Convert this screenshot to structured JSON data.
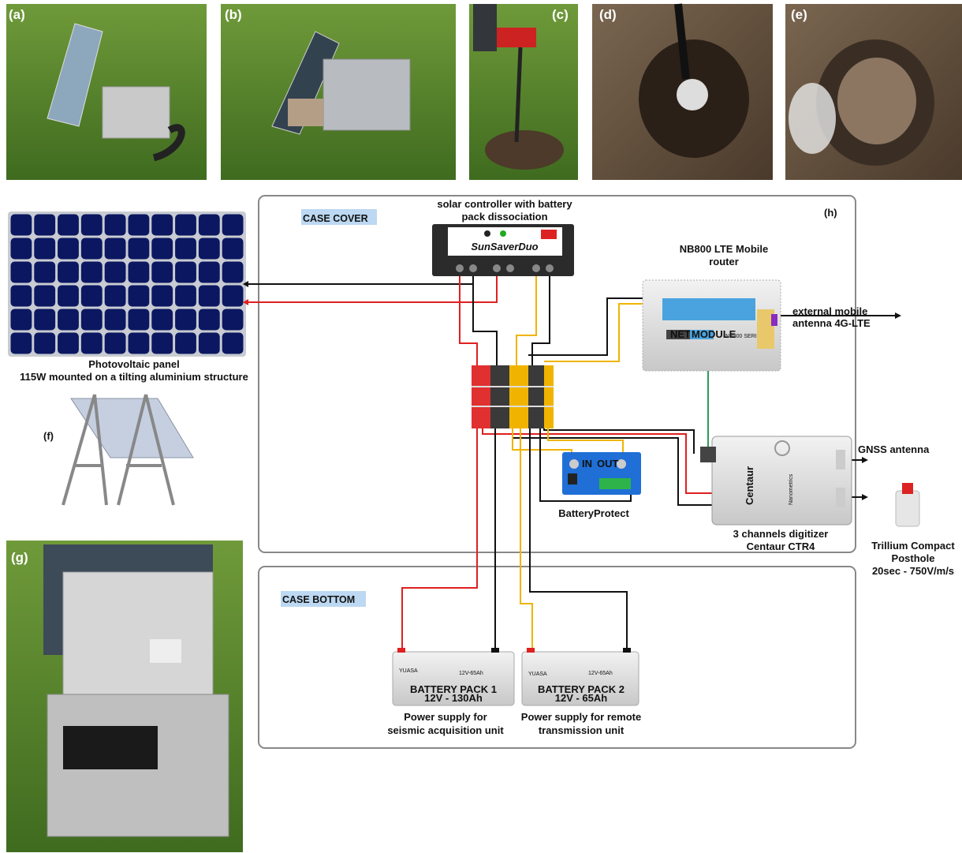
{
  "photos": [
    {
      "label": "(a)"
    },
    {
      "label": "(b)"
    },
    {
      "label": "(c)"
    },
    {
      "label": "(d)"
    },
    {
      "label": "(e)"
    }
  ],
  "panel_f": {
    "label": "(f)"
  },
  "panel_g": {
    "label": "(g)"
  },
  "panel_h": {
    "label": "(h)"
  },
  "sections": {
    "cover": "CASE COVER",
    "bottom": "CASE BOTTOM"
  },
  "solar_controller": {
    "lines": [
      "solar controller with battery",
      "pack dissociation"
    ],
    "brand": "SunSaverDuo"
  },
  "photovoltaic_panel": {
    "lines": [
      "Photovoltaic panel",
      "115W mounted on a tilting aluminium structure"
    ]
  },
  "router": {
    "lines": [
      "NB800 LTE Mobile",
      "router"
    ],
    "brand": [
      "NET",
      "MODULE"
    ],
    "series": "NB800 SERIES"
  },
  "mobile_antenna": {
    "lines": [
      "external mobile",
      "antenna 4G-LTE"
    ]
  },
  "battery_protect": {
    "label": "BatteryProtect",
    "in": "IN",
    "out": "OUT"
  },
  "gnss": {
    "label": "GNSS antenna"
  },
  "digitizer": {
    "lines": [
      "3 channels digitizer",
      "Centaur CTR4"
    ],
    "brand": "Centaur",
    "maker": "Nanometrics"
  },
  "seismometer": {
    "lines": [
      "Trillium Compact",
      "Posthole",
      "20sec - 750V/m/s"
    ]
  },
  "batteries": [
    {
      "brand": "YUASA",
      "rating": "12V-65Ah",
      "lines": [
        "BATTERY PACK 1",
        "12V - 130Ah"
      ],
      "caption": [
        "Power supply for",
        "seismic acquisition unit"
      ]
    },
    {
      "brand": "YUASA",
      "rating": "12V-65Ah",
      "lines": [
        "BATTERY PACK 2",
        "12V - 65Ah"
      ],
      "caption": [
        "Power supply for remote",
        "transmission unit"
      ]
    }
  ]
}
